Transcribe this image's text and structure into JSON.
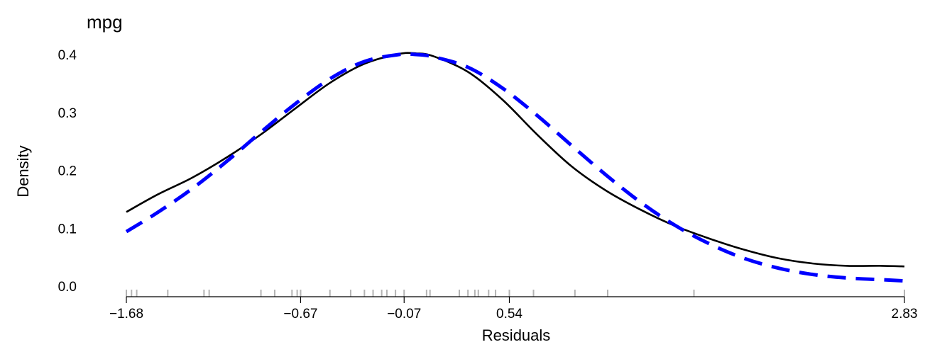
{
  "chart_data": {
    "type": "line",
    "title": "mpg",
    "xlabel": "Residuals",
    "ylabel": "Density",
    "xlim": [
      -1.68,
      2.83
    ],
    "ylim": [
      0,
      0.4
    ],
    "x_ticks": [
      "−1.68",
      "−0.67",
      "−0.07",
      "0.54",
      "2.83"
    ],
    "x_tick_values": [
      -1.68,
      -0.67,
      -0.07,
      0.54,
      2.83
    ],
    "y_ticks": [
      "0.0",
      "0.1",
      "0.2",
      "0.3",
      "0.4"
    ],
    "y_tick_values": [
      0,
      0.1,
      0.2,
      0.3,
      0.4
    ],
    "grid": false,
    "series": [
      {
        "style": "solid",
        "color": "#000000",
        "x": [
          -1.68,
          -1.5,
          -1.3,
          -1.1,
          -0.9,
          -0.7,
          -0.5,
          -0.3,
          -0.1,
          0.0,
          0.1,
          0.3,
          0.5,
          0.7,
          0.9,
          1.1,
          1.3,
          1.5,
          1.7,
          1.9,
          2.1,
          2.3,
          2.5,
          2.7,
          2.83
        ],
        "y": [
          0.128,
          0.158,
          0.187,
          0.222,
          0.262,
          0.307,
          0.351,
          0.384,
          0.401,
          0.402,
          0.397,
          0.37,
          0.322,
          0.262,
          0.207,
          0.165,
          0.132,
          0.104,
          0.082,
          0.063,
          0.048,
          0.039,
          0.035,
          0.035,
          0.034
        ]
      },
      {
        "style": "dashed",
        "color": "#0000ff",
        "x": [
          -1.68,
          -1.5,
          -1.3,
          -1.1,
          -0.9,
          -0.7,
          -0.5,
          -0.3,
          -0.1,
          0.0,
          0.1,
          0.3,
          0.5,
          0.7,
          0.9,
          1.1,
          1.3,
          1.5,
          1.7,
          1.9,
          2.1,
          2.3,
          2.5,
          2.7,
          2.83
        ],
        "y": [
          0.094,
          0.127,
          0.168,
          0.215,
          0.266,
          0.315,
          0.358,
          0.388,
          0.4,
          0.4,
          0.396,
          0.378,
          0.342,
          0.295,
          0.243,
          0.192,
          0.145,
          0.105,
          0.073,
          0.048,
          0.031,
          0.02,
          0.014,
          0.011,
          0.009
        ]
      }
    ],
    "rug": [
      -1.68,
      -1.65,
      -1.62,
      -1.44,
      -1.23,
      -1.2,
      -0.9,
      -0.82,
      -0.72,
      -0.69,
      -0.67,
      -0.5,
      -0.38,
      -0.3,
      -0.25,
      -0.2,
      -0.17,
      -0.12,
      -0.07,
      0.06,
      0.08,
      0.25,
      0.3,
      0.34,
      0.36,
      0.42,
      0.46,
      0.54,
      0.68,
      0.92,
      1.11,
      1.61,
      2.83
    ]
  }
}
